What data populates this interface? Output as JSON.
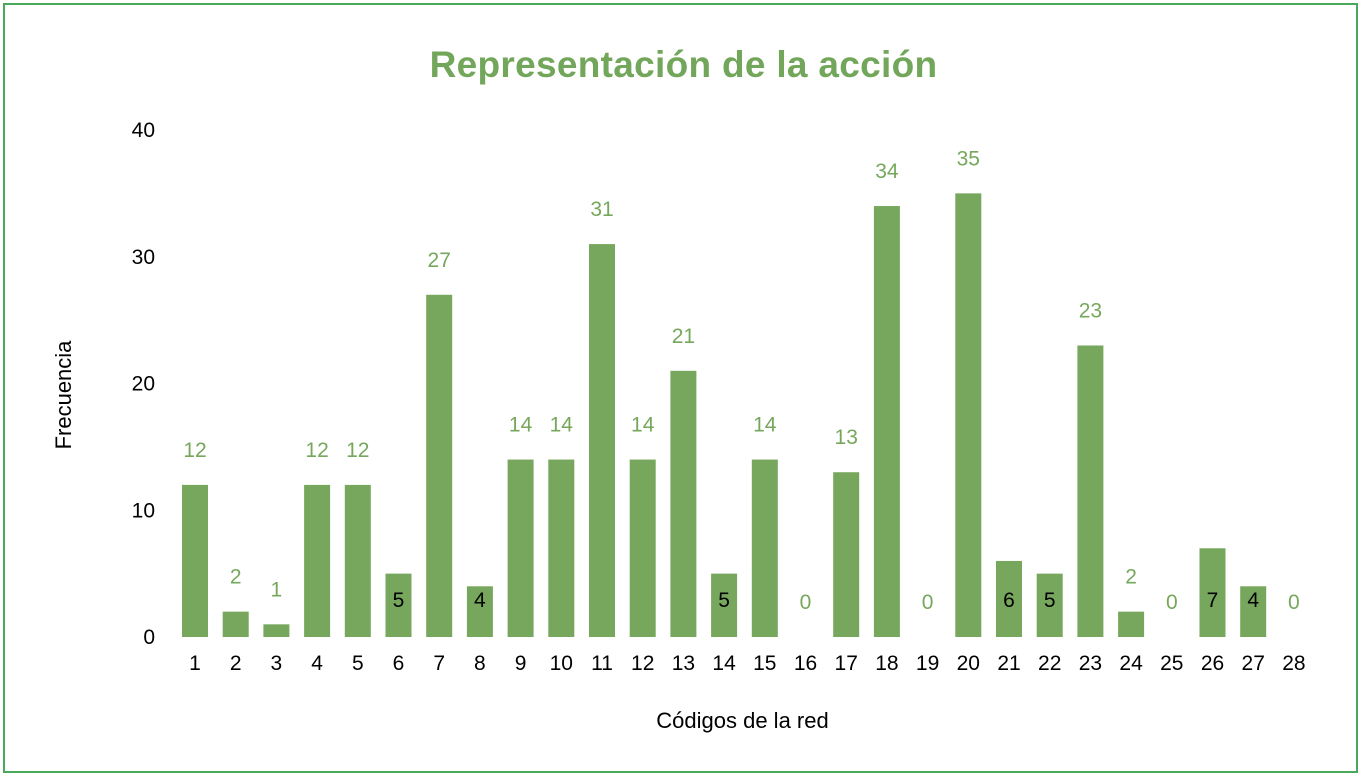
{
  "chart_data": {
    "type": "bar",
    "title": "Representación de la acción",
    "xlabel": "Códigos de la red",
    "ylabel": "Frecuencia",
    "ylim": [
      0,
      40
    ],
    "yticks": [
      0,
      10,
      20,
      30,
      40
    ],
    "grid": false,
    "legend": "none",
    "categories": [
      "1",
      "2",
      "3",
      "4",
      "5",
      "6",
      "7",
      "8",
      "9",
      "10",
      "11",
      "12",
      "13",
      "14",
      "15",
      "16",
      "17",
      "18",
      "19",
      "20",
      "21",
      "22",
      "23",
      "24",
      "25",
      "26",
      "27",
      "28"
    ],
    "values": [
      12,
      2,
      1,
      12,
      12,
      5,
      27,
      4,
      14,
      14,
      31,
      14,
      21,
      5,
      14,
      0,
      13,
      34,
      0,
      35,
      6,
      5,
      23,
      2,
      0,
      7,
      4,
      0
    ],
    "inside_label_categories": [
      "6",
      "8",
      "14",
      "21",
      "22",
      "26",
      "27"
    ],
    "colors": {
      "bar": "#76a75c",
      "label_outside": "#76a75c",
      "label_inside": "#000000",
      "title": "#72a65a",
      "border": "#4aa85a"
    }
  }
}
